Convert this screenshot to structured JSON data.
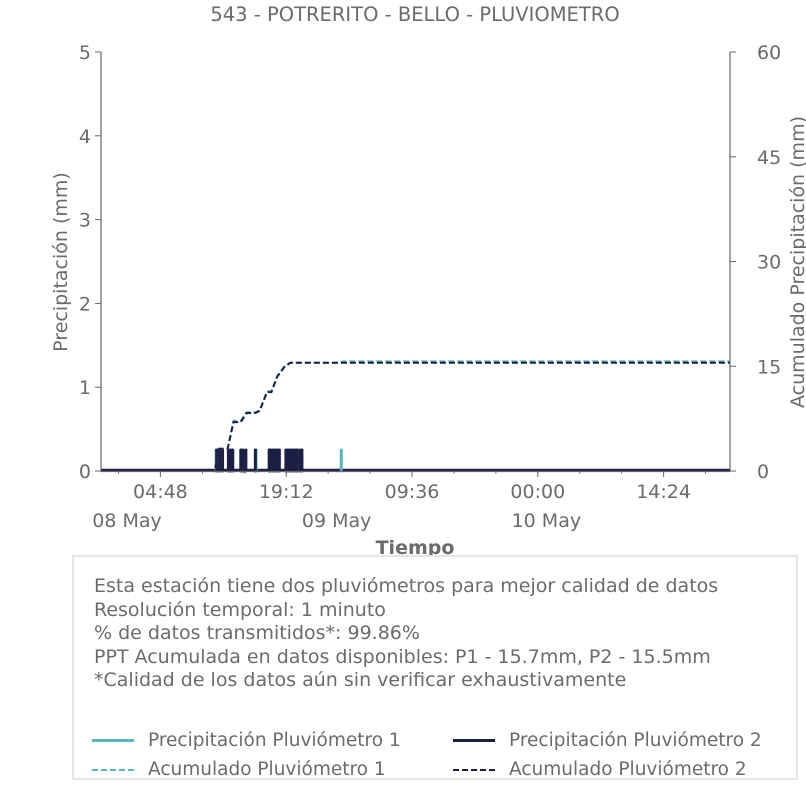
{
  "chart_data": {
    "type": "line",
    "title": "543 - POTRERITO - BELLO - PLUVIOMETRO",
    "xlabel": "Tiempo",
    "ylabel": "Precipitación (mm)",
    "y2label": "Acumulado Precipitación (mm)",
    "x_range": [
      "2022-05-07T22:00",
      "2022-05-10T22:00"
    ],
    "ylim": [
      0,
      5
    ],
    "y2lim": [
      0,
      60
    ],
    "y_ticks": [
      0,
      1,
      2,
      3,
      4,
      5
    ],
    "y2_ticks": [
      0,
      15,
      30,
      45,
      60
    ],
    "x_ticks": [
      {
        "t": "2022-05-08T04:48",
        "time": "04:48",
        "date": ""
      },
      {
        "t": "2022-05-08T19:12",
        "time": "19:12",
        "date": ""
      },
      {
        "t": "2022-05-09T09:36",
        "time": "09:36",
        "date": ""
      },
      {
        "t": "2022-05-10T00:00",
        "time": "00:00",
        "date": ""
      },
      {
        "t": "2022-05-10T14:24",
        "time": "14:24",
        "date": ""
      }
    ],
    "date_labels": [
      {
        "t": "2022-05-07T22:00",
        "label": "08 May"
      },
      {
        "t": "2022-05-08T22:00",
        "label": "09 May"
      },
      {
        "t": "2022-05-09T22:00",
        "label": "10 May"
      }
    ],
    "series": [
      {
        "name": "Precipitación Pluviómetro 1",
        "axis": "left",
        "style": "bars",
        "color": "#5ab4bd",
        "x": [
          "2022-05-08T11:10",
          "2022-05-08T11:20",
          "2022-05-08T12:45",
          "2022-05-08T14:10",
          "2022-05-08T15:45",
          "2022-05-08T17:20",
          "2022-05-08T17:45",
          "2022-05-08T18:05",
          "2022-05-08T19:15",
          "2022-05-08T19:35",
          "2022-05-08T20:05",
          "2022-05-08T20:30",
          "2022-05-08T20:40",
          "2022-05-09T01:30"
        ],
        "values": [
          0.25,
          0.25,
          0.25,
          0.25,
          0.25,
          0.25,
          0.25,
          0.25,
          0.25,
          0.25,
          0.25,
          0.25,
          0.25,
          0.25
        ]
      },
      {
        "name": "Precipitación Pluviómetro 2",
        "axis": "left",
        "style": "bars",
        "color": "#1c1f44",
        "x": [
          "2022-05-08T11:15",
          "2022-05-08T11:35",
          "2022-05-08T11:55",
          "2022-05-08T12:35",
          "2022-05-08T12:50",
          "2022-05-08T13:05",
          "2022-05-08T14:00",
          "2022-05-08T14:15",
          "2022-05-08T14:35",
          "2022-05-08T15:40",
          "2022-05-08T17:15",
          "2022-05-08T17:25",
          "2022-05-08T17:40",
          "2022-05-08T17:55",
          "2022-05-08T18:10",
          "2022-05-08T18:25",
          "2022-05-08T19:10",
          "2022-05-08T19:25",
          "2022-05-08T19:40",
          "2022-05-08T19:55",
          "2022-05-08T20:10",
          "2022-05-08T20:25",
          "2022-05-08T20:45",
          "2022-05-08T21:00"
        ],
        "values": [
          0.25,
          0.25,
          0.25,
          0.25,
          0.25,
          0.25,
          0.25,
          0.25,
          0.25,
          0.25,
          0.25,
          0.25,
          0.25,
          0.25,
          0.25,
          0.25,
          0.25,
          0.25,
          0.25,
          0.25,
          0.25,
          0.25,
          0.25,
          0.25
        ]
      },
      {
        "name": "Acumulado Pluviómetro 1",
        "axis": "right",
        "style": "dashed",
        "color": "#5ab4bd",
        "x": [
          "2022-05-07T22:00",
          "2022-05-08T11:00",
          "2022-05-08T11:30",
          "2022-05-08T12:30",
          "2022-05-08T13:10",
          "2022-05-08T14:00",
          "2022-05-08T14:40",
          "2022-05-08T15:40",
          "2022-05-08T16:10",
          "2022-05-08T17:00",
          "2022-05-08T17:30",
          "2022-05-08T18:10",
          "2022-05-08T19:00",
          "2022-05-08T19:40",
          "2022-05-08T20:20",
          "2022-05-08T21:00",
          "2022-05-09T01:20",
          "2022-05-09T01:40",
          "2022-05-10T22:00"
        ],
        "values": [
          0,
          0,
          3.2,
          3.2,
          7.2,
          7.2,
          8.4,
          8.4,
          8.7,
          11.4,
          11.4,
          13.6,
          15.0,
          15.5,
          15.5,
          15.5,
          15.5,
          15.7,
          15.7
        ]
      },
      {
        "name": "Acumulado Pluviómetro 2",
        "axis": "right",
        "style": "dashed",
        "color": "#1c1f44",
        "x": [
          "2022-05-07T22:00",
          "2022-05-08T11:00",
          "2022-05-08T11:30",
          "2022-05-08T12:30",
          "2022-05-08T13:10",
          "2022-05-08T14:00",
          "2022-05-08T14:40",
          "2022-05-08T15:40",
          "2022-05-08T16:10",
          "2022-05-08T17:00",
          "2022-05-08T17:30",
          "2022-05-08T18:10",
          "2022-05-08T19:00",
          "2022-05-08T19:40",
          "2022-05-08T20:20",
          "2022-05-08T21:00",
          "2022-05-10T22:00"
        ],
        "values": [
          0,
          0,
          3.2,
          3.2,
          7.0,
          7.0,
          8.3,
          8.3,
          8.6,
          11.3,
          11.3,
          13.5,
          14.9,
          15.5,
          15.5,
          15.5,
          15.5
        ]
      }
    ]
  },
  "info_box": {
    "lines": [
      "Esta estación tiene dos pluviómetros para mejor calidad de datos",
      "Resolución temporal: 1 minuto",
      "% de datos transmitidos*: 99.86%",
      "PPT Acumulada en datos disponibles: P1 - 15.7mm, P2 - 15.5mm",
      "*Calidad de los datos aún sin verificar exhaustivamente"
    ]
  },
  "legend": {
    "placement": "bottom",
    "items": [
      {
        "label": "Precipitación Pluviómetro 1",
        "color": "#5ab4bd",
        "style": "solid"
      },
      {
        "label": "Precipitación Pluviómetro 2",
        "color": "#1c1f44",
        "style": "solid"
      },
      {
        "label": "Acumulado Pluviómetro 1",
        "color": "#5ab4bd",
        "style": "dashed"
      },
      {
        "label": "Acumulado Pluviómetro 2",
        "color": "#1c1f44",
        "style": "dashed"
      }
    ]
  }
}
